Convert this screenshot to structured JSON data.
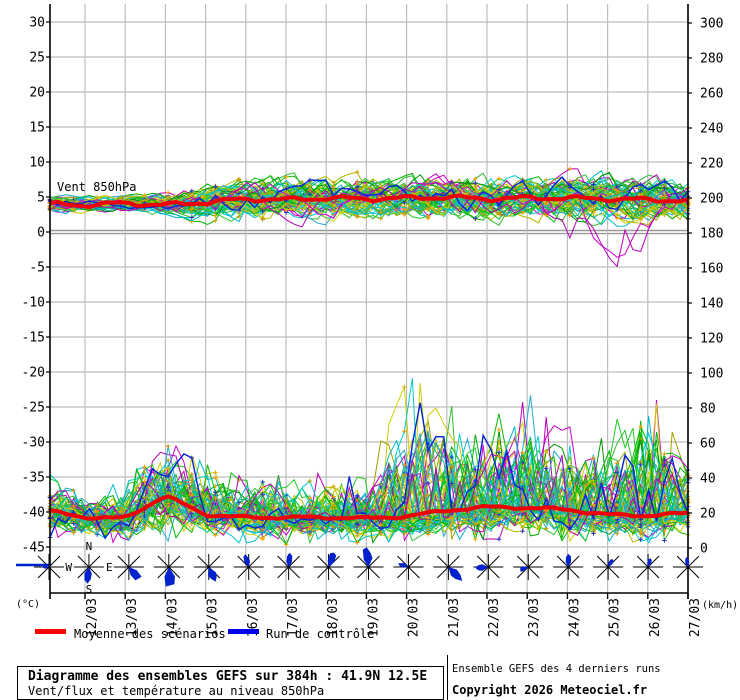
{
  "header": {
    "band_label": "Vent 850hPa",
    "left_unit": "(°C)",
    "right_unit": "(km/h)"
  },
  "legend": {
    "mean_label": "Moyenne des scénarios",
    "mean_color": "#ff0000",
    "control_label": "Run de contrôle",
    "control_color": "#0000ee"
  },
  "footer": {
    "title": "Diagramme des ensembles GEFS sur 384h : 41.9N 12.5E",
    "subtitle": "Vent/flux et température au niveau 850hPa",
    "credit_line1": "Ensemble GEFS des 4 derniers runs",
    "credit_line2": "Copyright 2026 Meteociel.fr"
  },
  "compass": {
    "n": "N",
    "e": "E",
    "s": "S",
    "w": "W"
  },
  "chart_data": {
    "type": "line",
    "title": "Diagramme des ensembles GEFS sur 384h : 41.9N 12.5E",
    "subtitle": "Vent/flux et température au niveau 850hPa",
    "x_tick_labels": [
      "12/03",
      "13/03",
      "14/03",
      "15/03",
      "16/03",
      "17/03",
      "18/03",
      "19/03",
      "20/03",
      "21/03",
      "22/03",
      "23/03",
      "24/03",
      "25/03",
      "26/03",
      "27/03"
    ],
    "left_axis": {
      "unit": "(°C)",
      "ticks": [
        30,
        25,
        20,
        15,
        10,
        5,
        0,
        -5,
        -10,
        -15,
        -20,
        -25,
        -30,
        -35,
        -40,
        -45
      ],
      "emphasized_tick": 0
    },
    "right_axis": {
      "unit": "(km/h)",
      "ticks": [
        300,
        280,
        260,
        240,
        220,
        200,
        180,
        160,
        140,
        120,
        100,
        80,
        60,
        40,
        20,
        0
      ]
    },
    "grid": true,
    "legend_entries": [
      "Moyenne des scénarios",
      "Run de contrôle"
    ],
    "bands": {
      "top": {
        "label": "Vent 850hPa",
        "axis": "right",
        "mean_kmh_at_edge_then_each_day": [
          196.5,
          196,
          197,
          196,
          197.5,
          199.5,
          199,
          200,
          199.5,
          200,
          200.5,
          199.5,
          200,
          200,
          199.5,
          199,
          198.5
        ],
        "spread_halfwidth_kmh": [
          4,
          4,
          4,
          5,
          8,
          10,
          10,
          10,
          10,
          10,
          11,
          11,
          10,
          11,
          12,
          11,
          10
        ],
        "outlier_min_kmh": 150
      },
      "bottom": {
        "axis": "right",
        "mean_kmh_at_edge_then_each_day": [
          21,
          17.5,
          17,
          30,
          19,
          17.5,
          17.5,
          17.5,
          17,
          18,
          21.5,
          23.5,
          23,
          22,
          19,
          18.5,
          20
        ],
        "envelope_max_kmh": [
          42,
          32,
          38,
          62,
          48,
          40,
          45,
          42,
          40,
          99,
          85,
          72,
          88,
          78,
          68,
          92,
          58
        ],
        "envelope_min_kmh": [
          6,
          3,
          2,
          4,
          3,
          3,
          2,
          3,
          3,
          4,
          5,
          5,
          5,
          4,
          4,
          3,
          4
        ]
      }
    },
    "wind_roses": [
      {
        "dir": 270,
        "size": 7,
        "west_line": true
      },
      {
        "dir": 185,
        "size": 15,
        "compass_labels": true
      },
      {
        "dir": 140,
        "size": 16
      },
      {
        "dir": 175,
        "size": 20
      },
      {
        "dir": 155,
        "size": 16
      },
      {
        "dir": 345,
        "size": 12
      },
      {
        "dir": 5,
        "size": 13
      },
      {
        "dir": 20,
        "size": 15
      },
      {
        "dir": 355,
        "size": 18
      },
      {
        "dir": 290,
        "size": 9
      },
      {
        "dir": 135,
        "size": 17
      },
      {
        "dir": 265,
        "size": 13
      },
      {
        "dir": 250,
        "size": 9
      },
      {
        "dir": 0,
        "size": 12
      },
      {
        "dir": 30,
        "size": 8
      },
      {
        "dir": 15,
        "size": 8
      },
      {
        "dir": 350,
        "size": 9
      }
    ],
    "colors": {
      "mean": "#ee0000",
      "control": "#0022dd",
      "grid": "#bdbdbd",
      "grid_emphasis": "#999999",
      "axis": "#000000",
      "rose": "#0022cc",
      "members": [
        "#00aa00",
        "#00bb00",
        "#22cc22",
        "#009900",
        "#33bb33",
        "#b8b800",
        "#cccc00",
        "#a0a000",
        "#cc00cc",
        "#b800b8",
        "#00b8c8",
        "#00cccc",
        "#22aacc"
      ],
      "markers": [
        "#ff9900",
        "#cc9900",
        "#2233cc",
        "#ddaa00"
      ]
    }
  }
}
